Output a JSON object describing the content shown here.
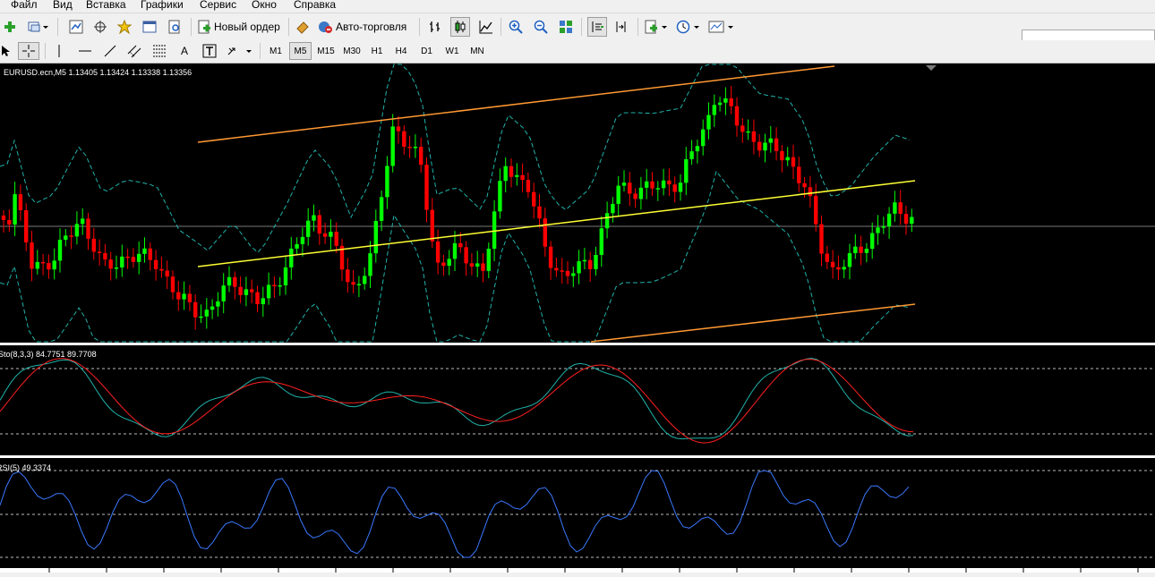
{
  "menu": [
    "Файл",
    "Вид",
    "Вставка",
    "Графики",
    "Сервис",
    "Окно",
    "Справка"
  ],
  "toolbar": {
    "new_order_label": "Новый ордер",
    "auto_trading_label": "Авто-торговля",
    "timeframes": [
      "M1",
      "M5",
      "M15",
      "M30",
      "H1",
      "H4",
      "D1",
      "W1",
      "MN"
    ],
    "active_timeframe": "M5",
    "text_tool_label": "A"
  },
  "main_chart": {
    "header": "EURUSD.ecn,M5  1.13405 1.13424 1.13338 1.13356",
    "bull_color": "#00ff00",
    "bear_color": "#ff0000",
    "channel_color": "#ffa500",
    "midline_color": "#ffff00",
    "bands_color": "#20b2aa"
  },
  "stoch": {
    "header": "Sto(8,3,3) 84.7751 89.7708",
    "main_color": "#20b2aa",
    "signal_color": "#ff0000"
  },
  "rsi": {
    "header": "RSI(5) 49.3374",
    "line_color": "#1e90ff"
  }
}
